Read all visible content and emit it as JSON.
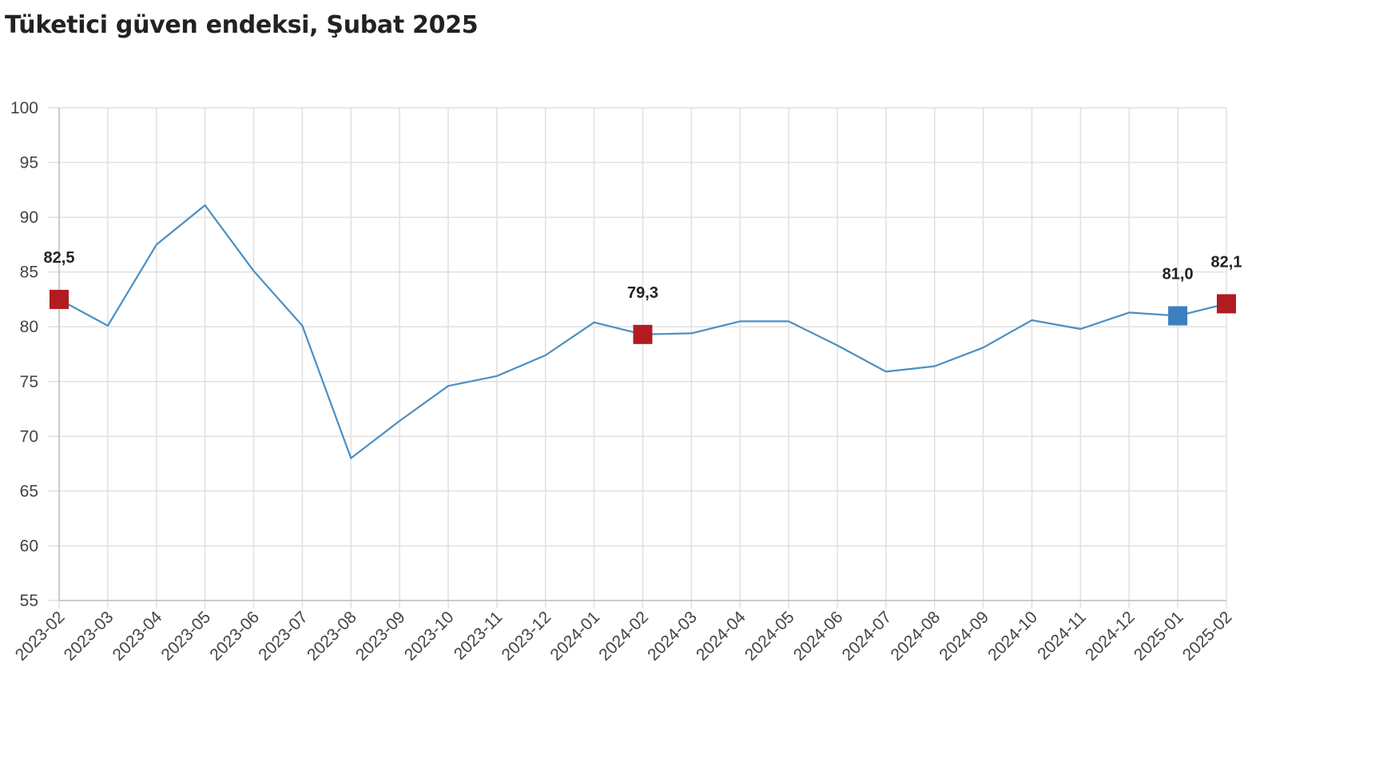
{
  "title": "Tüketici güven endeksi, Şubat 2025",
  "colors": {
    "line": "#4a8fc4",
    "highlight": "#b01c22",
    "last_previous": "#3a7fc0",
    "grid": "#e0e0e0",
    "axis": "#bfbfbf"
  },
  "chart_data": {
    "type": "line",
    "title": "Tüketici güven endeksi, Şubat 2025",
    "xlabel": "",
    "ylabel": "",
    "ylim": [
      55,
      100
    ],
    "yticks": [
      "55",
      "60",
      "65",
      "70",
      "75",
      "80",
      "85",
      "90",
      "95",
      "100"
    ],
    "grid": true,
    "categories": [
      "2023-02",
      "2023-03",
      "2023-04",
      "2023-05",
      "2023-06",
      "2023-07",
      "2023-08",
      "2023-09",
      "2023-10",
      "2023-11",
      "2023-12",
      "2024-01",
      "2024-02",
      "2024-03",
      "2024-04",
      "2024-05",
      "2024-06",
      "2024-07",
      "2024-08",
      "2024-09",
      "2024-10",
      "2024-11",
      "2024-12",
      "2025-01",
      "2025-02"
    ],
    "values": [
      82.5,
      80.1,
      87.5,
      91.1,
      85.1,
      80.1,
      68.0,
      71.4,
      74.6,
      75.5,
      77.4,
      80.4,
      79.3,
      79.4,
      80.5,
      80.5,
      78.3,
      75.9,
      76.4,
      78.1,
      80.6,
      79.8,
      81.3,
      81.0,
      82.1
    ],
    "highlighted_points": [
      {
        "category": "2023-02",
        "value": 82.5,
        "label": "82,5",
        "color": "#b01c22"
      },
      {
        "category": "2024-02",
        "value": 79.3,
        "label": "79,3",
        "color": "#b01c22"
      },
      {
        "category": "2025-01",
        "value": 81.0,
        "label": "81,0",
        "color": "#3a7fc0"
      },
      {
        "category": "2025-02",
        "value": 82.1,
        "label": "82,1",
        "color": "#b01c22"
      }
    ]
  }
}
